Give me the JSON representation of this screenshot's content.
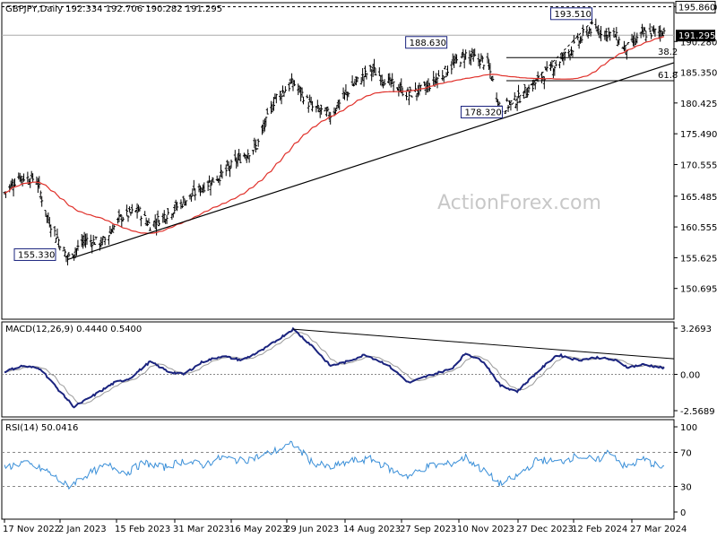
{
  "chart_data": [
    {
      "type": "candlestick",
      "header": "GBPJPY,Daily",
      "ohlc_label": "192.334 192.706 190.282 191.295",
      "watermark": "ActionForex.com",
      "ylim": [
        145.765,
        196.5
      ],
      "y_ticks": [
        "150.695",
        "155.625",
        "160.555",
        "165.485",
        "170.555",
        "175.490",
        "180.425",
        "185.350",
        "190.280",
        "195.860"
      ],
      "x_ticks": [
        "17 Nov 2022",
        "2 Jan 2023",
        "15 Feb 2023",
        "31 Mar 2023",
        "16 May 2023",
        "29 Jun 2023",
        "14 Aug 2023",
        "27 Sep 2023",
        "10 Nov 2023",
        "27 Dec 2023",
        "12 Feb 2024",
        "27 Mar 2024"
      ],
      "current_price": {
        "value": 191.295,
        "label": "191.295"
      },
      "top_line": {
        "value": 195.86,
        "label": "195.860"
      },
      "extreme_labels": [
        {
          "label": "155.330",
          "value": 155.33,
          "date": "2023-01-05"
        },
        {
          "label": "188.630",
          "value": 188.63,
          "date": "2023-10-25"
        },
        {
          "label": "178.320",
          "value": 178.32,
          "date": "2023-12-07"
        },
        {
          "label": "193.510",
          "value": 193.51,
          "date": "2024-02-16"
        }
      ],
      "fib_levels": [
        {
          "label": "38.2",
          "value": 187.7
        },
        {
          "label": "61.8",
          "value": 184.0
        }
      ],
      "trendline": {
        "start": {
          "date": "2023-01-05",
          "value": 155.33
        },
        "end": {
          "date": "2024-04-12",
          "value": 186.8
        }
      },
      "keypoints": [
        {
          "date": "2022-11-17",
          "value": 166.0
        },
        {
          "date": "2022-11-28",
          "value": 168.6
        },
        {
          "date": "2022-12-12",
          "value": 168.2
        },
        {
          "date": "2022-12-20",
          "value": 162.2
        },
        {
          "date": "2023-01-05",
          "value": 155.5
        },
        {
          "date": "2023-01-19",
          "value": 158.5
        },
        {
          "date": "2023-02-01",
          "value": 158.0
        },
        {
          "date": "2023-02-15",
          "value": 162.0
        },
        {
          "date": "2023-03-01",
          "value": 163.2
        },
        {
          "date": "2023-03-10",
          "value": 160.8
        },
        {
          "date": "2023-03-31",
          "value": 163.8
        },
        {
          "date": "2023-04-20",
          "value": 167.0
        },
        {
          "date": "2023-05-05",
          "value": 169.0
        },
        {
          "date": "2023-05-20",
          "value": 171.8
        },
        {
          "date": "2023-06-01",
          "value": 173.5
        },
        {
          "date": "2023-06-15",
          "value": 181.2
        },
        {
          "date": "2023-06-29",
          "value": 183.7
        },
        {
          "date": "2023-07-14",
          "value": 179.7
        },
        {
          "date": "2023-07-28",
          "value": 178.5
        },
        {
          "date": "2023-08-14",
          "value": 183.2
        },
        {
          "date": "2023-08-29",
          "value": 185.8
        },
        {
          "date": "2023-09-13",
          "value": 183.5
        },
        {
          "date": "2023-09-27",
          "value": 181.8
        },
        {
          "date": "2023-10-10",
          "value": 182.8
        },
        {
          "date": "2023-10-25",
          "value": 185.5
        },
        {
          "date": "2023-11-10",
          "value": 188.2
        },
        {
          "date": "2023-11-27",
          "value": 186.8
        },
        {
          "date": "2023-12-07",
          "value": 179.5
        },
        {
          "date": "2023-12-20",
          "value": 181.0
        },
        {
          "date": "2024-01-05",
          "value": 184.0
        },
        {
          "date": "2024-01-25",
          "value": 187.8
        },
        {
          "date": "2024-02-16",
          "value": 192.5
        },
        {
          "date": "2024-03-05",
          "value": 191.2
        },
        {
          "date": "2024-03-13",
          "value": 189.0
        },
        {
          "date": "2024-03-27",
          "value": 191.5
        },
        {
          "date": "2024-04-12",
          "value": 192.0
        }
      ]
    },
    {
      "type": "line",
      "header": "MACD(12,26,9) 0.4440 0.5400",
      "ylim": [
        -2.5689,
        3.2693
      ],
      "y_ticks": [
        "3.2693",
        "0.00",
        "-2.5689"
      ],
      "zero_line": 0,
      "series": [
        {
          "values_from": "keypoints",
          "color": "#1a237e"
        },
        {
          "role": "signal",
          "color": "#999999"
        }
      ],
      "keypoints": [
        {
          "date": "2022-11-17",
          "value": 0.2
        },
        {
          "date": "2022-12-01",
          "value": 0.6
        },
        {
          "date": "2022-12-15",
          "value": 0.4
        },
        {
          "date": "2022-12-28",
          "value": -1.0
        },
        {
          "date": "2023-01-10",
          "value": -2.3
        },
        {
          "date": "2023-01-25",
          "value": -1.5
        },
        {
          "date": "2023-02-10",
          "value": -0.6
        },
        {
          "date": "2023-02-22",
          "value": -0.3
        },
        {
          "date": "2023-03-10",
          "value": 0.9
        },
        {
          "date": "2023-03-24",
          "value": 0.2
        },
        {
          "date": "2023-04-05",
          "value": 0.0
        },
        {
          "date": "2023-04-20",
          "value": 0.9
        },
        {
          "date": "2023-05-05",
          "value": 1.3
        },
        {
          "date": "2023-05-20",
          "value": 1.0
        },
        {
          "date": "2023-06-05",
          "value": 1.7
        },
        {
          "date": "2023-06-29",
          "value": 3.2
        },
        {
          "date": "2023-07-14",
          "value": 2.0
        },
        {
          "date": "2023-07-28",
          "value": 0.6
        },
        {
          "date": "2023-08-10",
          "value": 0.9
        },
        {
          "date": "2023-08-24",
          "value": 1.4
        },
        {
          "date": "2023-09-10",
          "value": 0.7
        },
        {
          "date": "2023-09-27",
          "value": -0.6
        },
        {
          "date": "2023-10-12",
          "value": -0.1
        },
        {
          "date": "2023-10-30",
          "value": 0.4
        },
        {
          "date": "2023-11-10",
          "value": 1.5
        },
        {
          "date": "2023-11-24",
          "value": 0.9
        },
        {
          "date": "2023-12-07",
          "value": -0.8
        },
        {
          "date": "2023-12-20",
          "value": -1.2
        },
        {
          "date": "2024-01-05",
          "value": 0.2
        },
        {
          "date": "2024-01-20",
          "value": 1.4
        },
        {
          "date": "2024-02-05",
          "value": 1.0
        },
        {
          "date": "2024-02-20",
          "value": 1.2
        },
        {
          "date": "2024-03-05",
          "value": 1.0
        },
        {
          "date": "2024-03-15",
          "value": 0.5
        },
        {
          "date": "2024-03-27",
          "value": 0.7
        },
        {
          "date": "2024-04-12",
          "value": 0.45
        }
      ],
      "trendline": {
        "start": {
          "date": "2023-06-29",
          "value": 3.2
        },
        "end": {
          "date": "2024-04-12",
          "value": 1.1
        }
      }
    },
    {
      "type": "line",
      "header": "RSI(14) 50.0416",
      "ylim": [
        0,
        100
      ],
      "y_ticks": [
        "100",
        "70",
        "30",
        "0"
      ],
      "levels": [
        70,
        30
      ],
      "color": "#3a8fd8",
      "keypoints": [
        {
          "date": "2022-11-17",
          "value": 52
        },
        {
          "date": "2022-12-01",
          "value": 58
        },
        {
          "date": "2022-12-20",
          "value": 48
        },
        {
          "date": "2023-01-05",
          "value": 30
        },
        {
          "date": "2023-01-20",
          "value": 44
        },
        {
          "date": "2023-02-05",
          "value": 55
        },
        {
          "date": "2023-02-20",
          "value": 46
        },
        {
          "date": "2023-03-05",
          "value": 58
        },
        {
          "date": "2023-03-20",
          "value": 52
        },
        {
          "date": "2023-04-05",
          "value": 60
        },
        {
          "date": "2023-04-20",
          "value": 55
        },
        {
          "date": "2023-05-05",
          "value": 64
        },
        {
          "date": "2023-05-20",
          "value": 60
        },
        {
          "date": "2023-06-05",
          "value": 66
        },
        {
          "date": "2023-06-29",
          "value": 80
        },
        {
          "date": "2023-07-14",
          "value": 58
        },
        {
          "date": "2023-07-28",
          "value": 52
        },
        {
          "date": "2023-08-14",
          "value": 60
        },
        {
          "date": "2023-08-29",
          "value": 62
        },
        {
          "date": "2023-09-15",
          "value": 48
        },
        {
          "date": "2023-09-27",
          "value": 42
        },
        {
          "date": "2023-10-12",
          "value": 54
        },
        {
          "date": "2023-10-28",
          "value": 56
        },
        {
          "date": "2023-11-10",
          "value": 64
        },
        {
          "date": "2023-11-24",
          "value": 48
        },
        {
          "date": "2023-12-07",
          "value": 33
        },
        {
          "date": "2023-12-20",
          "value": 42
        },
        {
          "date": "2024-01-05",
          "value": 62
        },
        {
          "date": "2024-01-20",
          "value": 58
        },
        {
          "date": "2024-02-05",
          "value": 66
        },
        {
          "date": "2024-02-20",
          "value": 60
        },
        {
          "date": "2024-03-01",
          "value": 72
        },
        {
          "date": "2024-03-13",
          "value": 52
        },
        {
          "date": "2024-03-27",
          "value": 62
        },
        {
          "date": "2024-04-12",
          "value": 50
        }
      ]
    }
  ]
}
